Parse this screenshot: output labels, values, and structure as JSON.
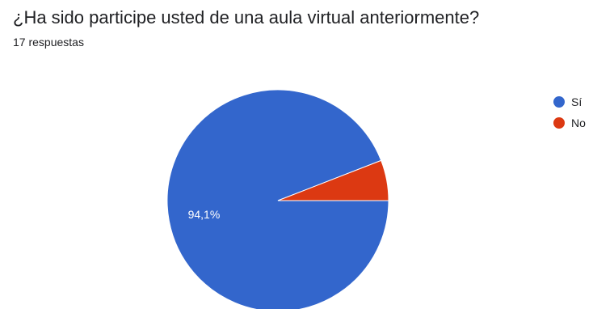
{
  "header": {
    "title": "¿Ha sido participe usted de una aula virtual anteriormente?",
    "subtitle": "17 respuestas"
  },
  "chart_data": {
    "type": "pie",
    "title": "¿Ha sido participe usted de una aula virtual anteriormente?",
    "subtitle": "17 respuestas",
    "legend_position": "right",
    "slices": [
      {
        "label": "Sí",
        "value": 94.1,
        "display": "94,1%",
        "color": "#3366cc"
      },
      {
        "label": "No",
        "value": 5.9,
        "display": "",
        "color": "#dc3912"
      }
    ]
  }
}
